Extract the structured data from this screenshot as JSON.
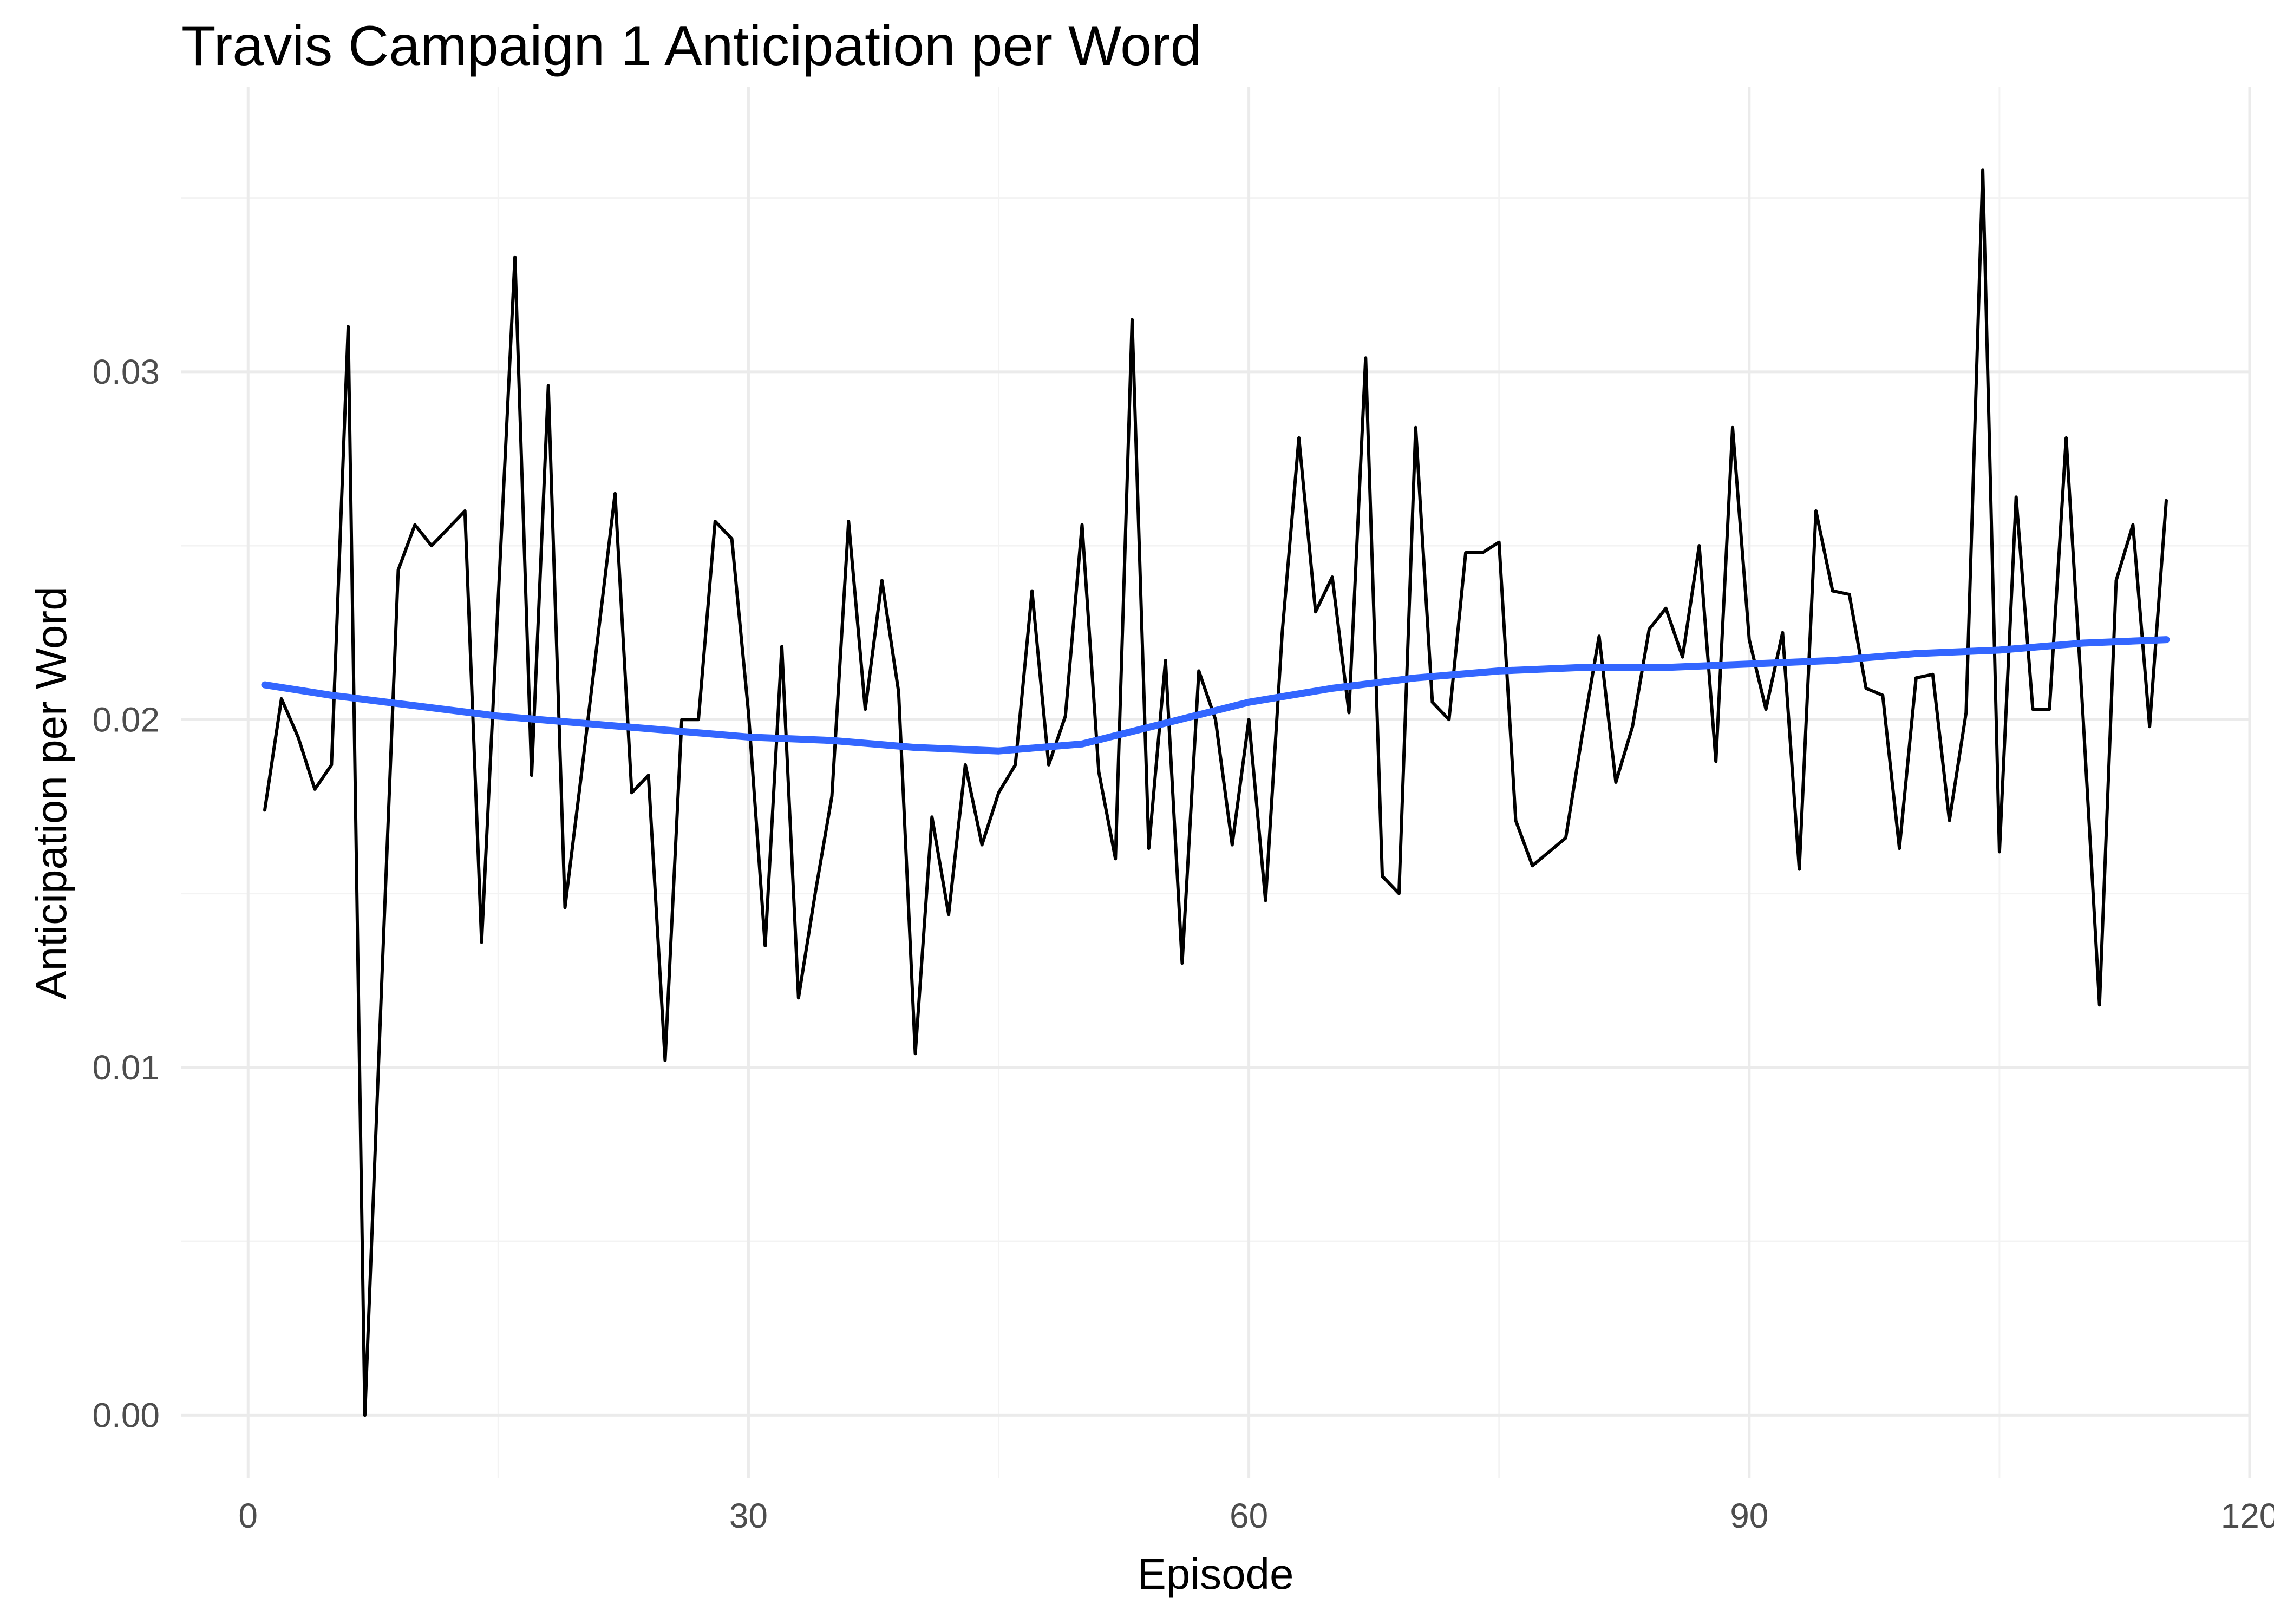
{
  "chart_data": {
    "type": "line",
    "title": "Travis Campaign 1 Anticipation per Word",
    "xlabel": "Episode",
    "ylabel": "Anticipation per Word",
    "xlim": [
      -4,
      120
    ],
    "ylim": [
      -0.0018,
      0.0382
    ],
    "x_ticks": [
      0,
      30,
      60,
      90,
      120
    ],
    "x_tick_labels": [
      "0",
      "30",
      "60",
      "90",
      "120"
    ],
    "y_ticks": [
      0,
      0.01,
      0.02,
      0.03
    ],
    "y_tick_labels": [
      "0.00",
      "0.01",
      "0.02",
      "0.03"
    ],
    "grid": true,
    "legend": "none",
    "colors": {
      "raw_line": "#000000",
      "smooth_line": "#3366FF",
      "grid": "#EBEBEB"
    },
    "series": [
      {
        "style": "raw",
        "x": [
          1,
          2,
          3,
          4,
          5,
          6,
          7,
          8,
          9,
          10,
          11,
          12,
          13,
          14,
          15,
          16,
          17,
          18,
          19,
          20,
          21,
          22,
          23,
          24,
          25,
          26,
          27,
          28,
          29,
          30,
          31,
          32,
          33,
          34,
          35,
          36,
          37,
          38,
          39,
          40,
          41,
          42,
          43,
          44,
          45,
          46,
          47,
          48,
          49,
          50,
          51,
          52,
          53,
          54,
          55,
          56,
          57,
          58,
          59,
          60,
          61,
          62,
          63,
          64,
          65,
          66,
          67,
          68,
          69,
          70,
          71,
          72,
          73,
          74,
          75,
          76,
          77,
          78,
          79,
          80,
          81,
          82,
          83,
          84,
          85,
          86,
          87,
          88,
          89,
          90,
          91,
          92,
          93,
          94,
          95,
          96,
          97,
          98,
          99,
          100,
          101,
          102,
          103,
          104,
          105,
          106,
          107,
          108,
          109,
          110,
          111,
          112,
          113,
          114,
          115
        ],
        "y": [
          0.0174,
          0.0206,
          0.0195,
          0.018,
          0.0187,
          0.0313,
          0.0,
          0.0123,
          0.0243,
          0.0256,
          0.025,
          0.0255,
          0.026,
          0.0136,
          0.0235,
          0.0333,
          0.0184,
          0.0296,
          0.0146,
          0.0185,
          0.0225,
          0.0265,
          0.0179,
          0.0184,
          0.0102,
          0.02,
          0.02,
          0.0257,
          0.0252,
          0.0202,
          0.0135,
          0.0221,
          0.012,
          0.015,
          0.0178,
          0.0257,
          0.0203,
          0.024,
          0.0208,
          0.0104,
          0.0172,
          0.0144,
          0.0187,
          0.0164,
          0.0179,
          0.0187,
          0.0237,
          0.0187,
          0.0201,
          0.0256,
          0.0185,
          0.016,
          0.0315,
          0.0163,
          0.0217,
          0.013,
          0.0214,
          0.02,
          0.0164,
          0.02,
          0.0148,
          0.0225,
          0.0281,
          0.0231,
          0.0241,
          0.0202,
          0.0304,
          0.0155,
          0.015,
          0.0284,
          0.0205,
          0.02,
          0.0248,
          0.0248,
          0.0251,
          0.0171,
          0.0158,
          0.0162,
          0.0166,
          0.0196,
          0.0224,
          0.0182,
          0.0198,
          0.0226,
          0.0232,
          0.0218,
          0.025,
          0.0188,
          0.0284,
          0.0223,
          0.0203,
          0.0225,
          0.0157,
          0.026,
          0.0237,
          0.0236,
          0.0209,
          0.0207,
          0.0163,
          0.0212,
          0.0213,
          0.0171,
          0.0202,
          0.0358,
          0.0162,
          0.0264,
          0.0203,
          0.0203,
          0.0281,
          0.0202,
          0.0118,
          0.024,
          0.0256,
          0.0198,
          0.0263
        ]
      },
      {
        "style": "smooth",
        "x": [
          1,
          5,
          10,
          15,
          20,
          25,
          30,
          35,
          40,
          45,
          50,
          55,
          60,
          65,
          70,
          75,
          80,
          85,
          90,
          95,
          100,
          105,
          110,
          115
        ],
        "y": [
          0.021,
          0.0207,
          0.0204,
          0.0201,
          0.0199,
          0.0197,
          0.0195,
          0.0194,
          0.0192,
          0.0191,
          0.0193,
          0.0199,
          0.0205,
          0.0209,
          0.0212,
          0.0214,
          0.0215,
          0.0215,
          0.0216,
          0.0217,
          0.0219,
          0.022,
          0.0222,
          0.0223
        ]
      }
    ]
  }
}
